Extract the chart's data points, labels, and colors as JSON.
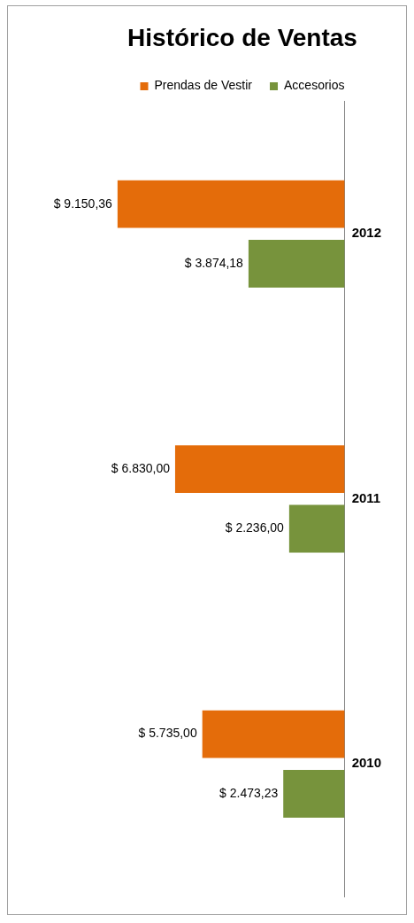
{
  "chart_data": {
    "type": "bar",
    "orientation": "horizontal",
    "title": "Histórico de Ventas",
    "categories": [
      "2012",
      "2011",
      "2010"
    ],
    "series": [
      {
        "name": "Prendas de Vestir",
        "color": "#e46c0a",
        "values": [
          9150.36,
          6830.0,
          5735.0
        ],
        "value_labels": [
          "$ 9.150,36",
          "$ 6.830,00",
          "$ 5.735,00"
        ]
      },
      {
        "name": "Accesorios",
        "color": "#77933c",
        "values": [
          3874.18,
          2236.0,
          2473.23
        ],
        "value_labels": [
          "$ 3.874,18",
          "$ 2.236,00",
          "$ 2.473,23"
        ]
      }
    ],
    "legend": "top",
    "grid": false
  }
}
